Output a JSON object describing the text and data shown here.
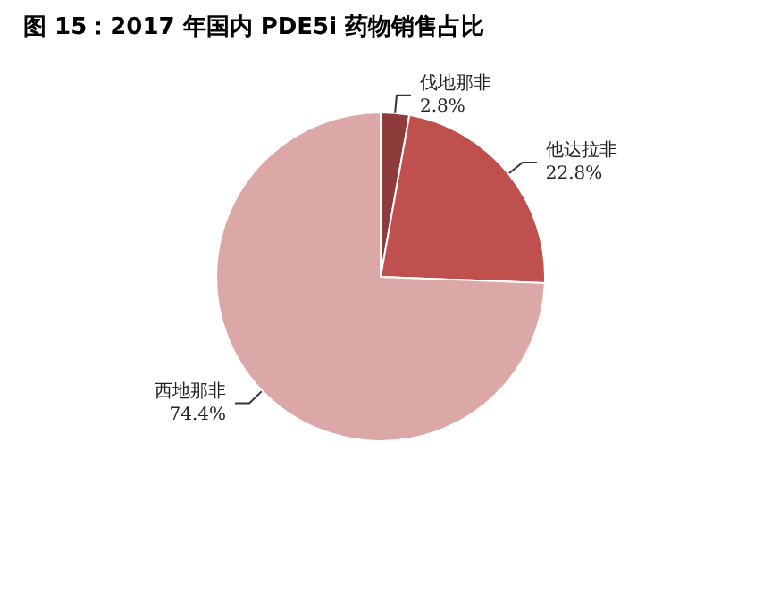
{
  "chart_data": {
    "type": "pie",
    "title": "图 15：2017 年国内 PDE5i 药物销售占比",
    "categories": [
      "伐地那非",
      "他达拉非",
      "西地那非"
    ],
    "values": [
      2.8,
      22.8,
      74.4
    ],
    "value_labels": [
      "2.8%",
      "22.8%",
      "74.4%"
    ],
    "colors": [
      "#8e3b3b",
      "#c0504d",
      "#dba8a7"
    ],
    "legend": false
  }
}
